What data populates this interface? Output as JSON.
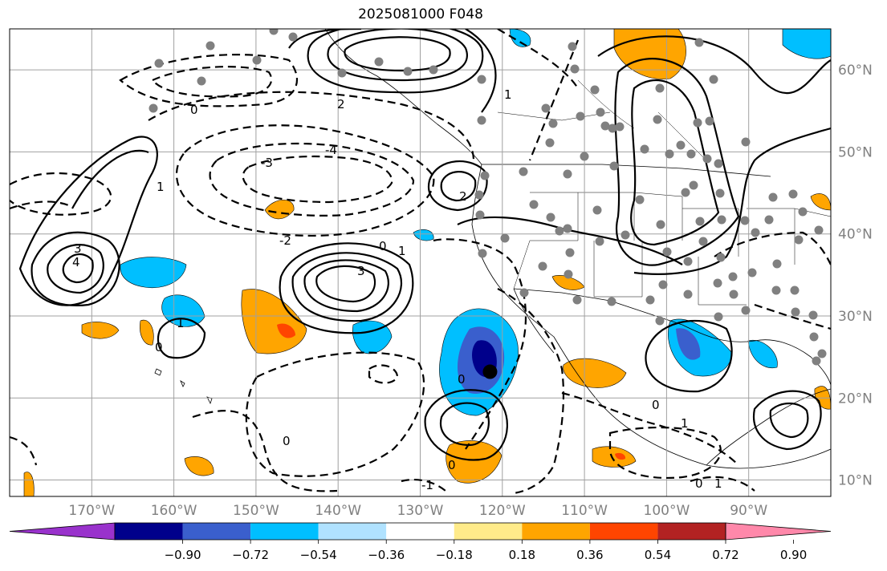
{
  "title": "2025081000 F048",
  "map": {
    "longitudes": [
      {
        "value": -170,
        "label": "170°W"
      },
      {
        "value": -160,
        "label": "160°W"
      },
      {
        "value": -150,
        "label": "150°W"
      },
      {
        "value": -140,
        "label": "140°W"
      },
      {
        "value": -130,
        "label": "130°W"
      },
      {
        "value": -120,
        "label": "120°W"
      },
      {
        "value": -110,
        "label": "110°W"
      },
      {
        "value": -100,
        "label": "100°W"
      },
      {
        "value": -90,
        "label": "90°W"
      }
    ],
    "latitudes": [
      {
        "value": 60,
        "label": "60°N"
      },
      {
        "value": 50,
        "label": "50°N"
      },
      {
        "value": 40,
        "label": "40°N"
      },
      {
        "value": 30,
        "label": "30°N"
      },
      {
        "value": 20,
        "label": "20°N"
      },
      {
        "value": 10,
        "label": "10°N"
      }
    ],
    "extent": {
      "lon_min": -180,
      "lon_max": -80,
      "lat_min": 8,
      "lat_max": 65
    },
    "contour_labels": [
      "-3",
      "-4",
      "-2",
      "-1",
      "0",
      "1",
      "2",
      "3",
      "4"
    ],
    "center_marker": {
      "lon": -121.5,
      "lat": 23.2,
      "color": "#000000"
    }
  },
  "colorbar": {
    "colors": [
      "#9932cc",
      "#00008b",
      "#3a5fcd",
      "#00bfff",
      "#b0e2ff",
      "#ffffff",
      "#ffeb8a",
      "#ffa500",
      "#ff4500",
      "#b22222",
      "#ff88aa"
    ],
    "labels": [
      "−0.90",
      "−0.72",
      "−0.54",
      "−0.36",
      "−0.18",
      "0.18",
      "0.36",
      "0.54",
      "0.72",
      "0.90"
    ]
  }
}
